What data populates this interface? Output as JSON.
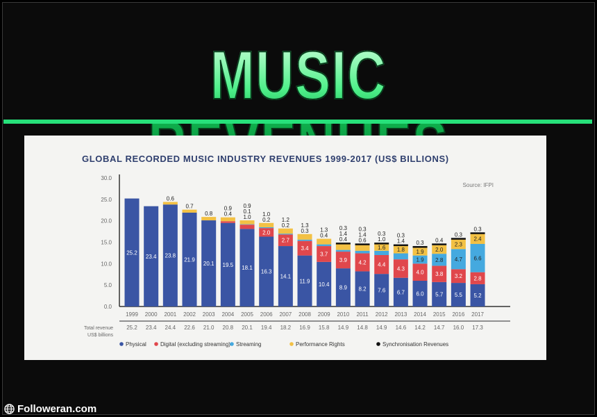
{
  "headline": "MUSIC REVENUES",
  "footer": {
    "site": "Followeran.com",
    "icon": "globe-icon"
  },
  "colors": {
    "accent_line": "#27e07a",
    "physical": "#3a55a4",
    "digital": "#e0474c",
    "streaming": "#45a9df",
    "performance": "#f3c144",
    "sync": "#111111"
  },
  "chart_data": {
    "type": "bar",
    "stacked": true,
    "title": "GLOBAL RECORDED MUSIC INDUSTRY REVENUES 1999-2017 (US$ BILLIONS)",
    "source": "Source: IFPI",
    "ylim": [
      0,
      30
    ],
    "yticks": [
      "0.0",
      "5.0",
      "10.0",
      "15.0",
      "20.0",
      "25.0",
      "30.0"
    ],
    "grid": false,
    "legend_position": "bottom",
    "categories": [
      "1999",
      "2000",
      "2001",
      "2002",
      "2003",
      "2004",
      "2005",
      "2006",
      "2007",
      "2008",
      "2009",
      "2010",
      "2011",
      "2012",
      "2013",
      "2014",
      "2015",
      "2016",
      "2017"
    ],
    "series": [
      {
        "name": "Physical",
        "values": [
          25.2,
          23.4,
          23.8,
          21.9,
          20.1,
          19.5,
          18.1,
          16.3,
          14.1,
          11.9,
          10.4,
          8.9,
          8.2,
          7.6,
          6.7,
          6.0,
          5.7,
          5.5,
          5.2
        ]
      },
      {
        "name": "Digital (excluding streaming)",
        "values": [
          0,
          0,
          0,
          0,
          0,
          0.4,
          1.0,
          2.0,
          2.7,
          3.4,
          3.7,
          3.9,
          4.2,
          4.4,
          4.3,
          4.0,
          3.8,
          3.2,
          2.8
        ]
      },
      {
        "name": "Streaming",
        "values": [
          0,
          0,
          0,
          0,
          0,
          0,
          0.1,
          0.2,
          0.2,
          0.3,
          0.4,
          0.4,
          0.6,
          1.0,
          1.4,
          1.9,
          2.8,
          4.7,
          6.6
        ]
      },
      {
        "name": "Performance Rights",
        "values": [
          0,
          0,
          0.6,
          0.7,
          0.8,
          0.9,
          0.9,
          1.0,
          1.2,
          1.3,
          1.3,
          1.4,
          1.4,
          1.6,
          1.8,
          1.9,
          2.0,
          2.3,
          2.4
        ]
      },
      {
        "name": "Synchronisation Revenues",
        "values": [
          0,
          0,
          0,
          0,
          0,
          0,
          0,
          0,
          0,
          0,
          0,
          0.3,
          0.3,
          0.3,
          0.3,
          0.3,
          0.4,
          0.3,
          0.3
        ]
      }
    ],
    "totals_label": [
      "Total revenue",
      "US$ billions"
    ],
    "totals": [
      "25.2",
      "23.4",
      "24.4",
      "22.6",
      "21.0",
      "20.8",
      "20.1",
      "19.4",
      "18.2",
      "16.9",
      "15.8",
      "14.9",
      "14.8",
      "14.9",
      "14.6",
      "14.2",
      "14.7",
      "16.0",
      "17.3"
    ]
  }
}
